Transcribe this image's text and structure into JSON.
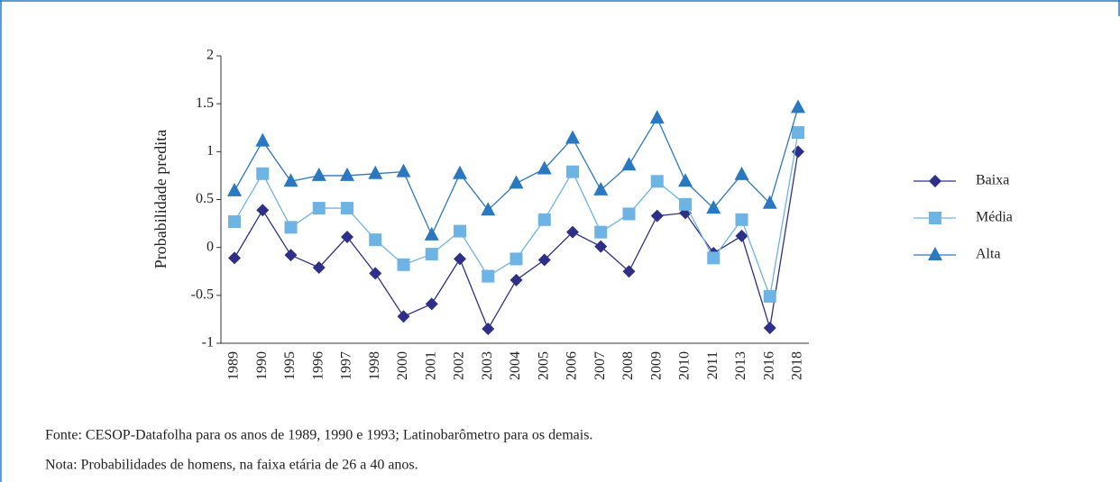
{
  "chart_data": {
    "type": "line",
    "y_label": "Probabilidade predita",
    "categories": [
      "1989",
      "1990",
      "1995",
      "1996",
      "1997",
      "1998",
      "2000",
      "2001",
      "2002",
      "2003",
      "2004",
      "2005",
      "2006",
      "2007",
      "2008",
      "2009",
      "2010",
      "2011",
      "2013",
      "2016",
      "2018"
    ],
    "series": [
      {
        "name": "Baixa",
        "color": "#2e3087",
        "marker": "diamond",
        "values": [
          -0.11,
          0.39,
          -0.08,
          -0.21,
          0.11,
          -0.27,
          -0.72,
          -0.59,
          -0.12,
          -0.85,
          -0.34,
          -0.13,
          0.16,
          0.01,
          -0.25,
          0.33,
          0.36,
          -0.06,
          0.12,
          -0.84,
          1.0
        ]
      },
      {
        "name": "Média",
        "color": "#6db3e3",
        "marker": "square",
        "values": [
          0.27,
          0.77,
          0.21,
          0.41,
          0.41,
          0.08,
          -0.18,
          -0.07,
          0.17,
          -0.3,
          -0.12,
          0.29,
          0.79,
          0.16,
          0.35,
          0.69,
          0.45,
          -0.11,
          0.29,
          -0.51,
          1.2
        ]
      },
      {
        "name": "Alta",
        "color": "#2a78c0",
        "marker": "triangle",
        "values": [
          0.59,
          1.11,
          0.69,
          0.75,
          0.75,
          0.77,
          0.79,
          0.13,
          0.77,
          0.39,
          0.67,
          0.82,
          1.14,
          0.6,
          0.86,
          1.35,
          0.69,
          0.41,
          0.76,
          0.46,
          1.46
        ]
      }
    ],
    "ylim": [
      -1,
      2
    ],
    "yticks": [
      -1,
      -0.5,
      0,
      0.5,
      1,
      1.5,
      2
    ],
    "legend": "right",
    "notes": [
      "Fonte: CESOP-Datafolha para os anos de 1989, 1990 e 1993; Latinobarômetro para os demais.",
      "Nota: Probabilidades de homens, na faixa etária de 26 a 40 anos."
    ]
  }
}
